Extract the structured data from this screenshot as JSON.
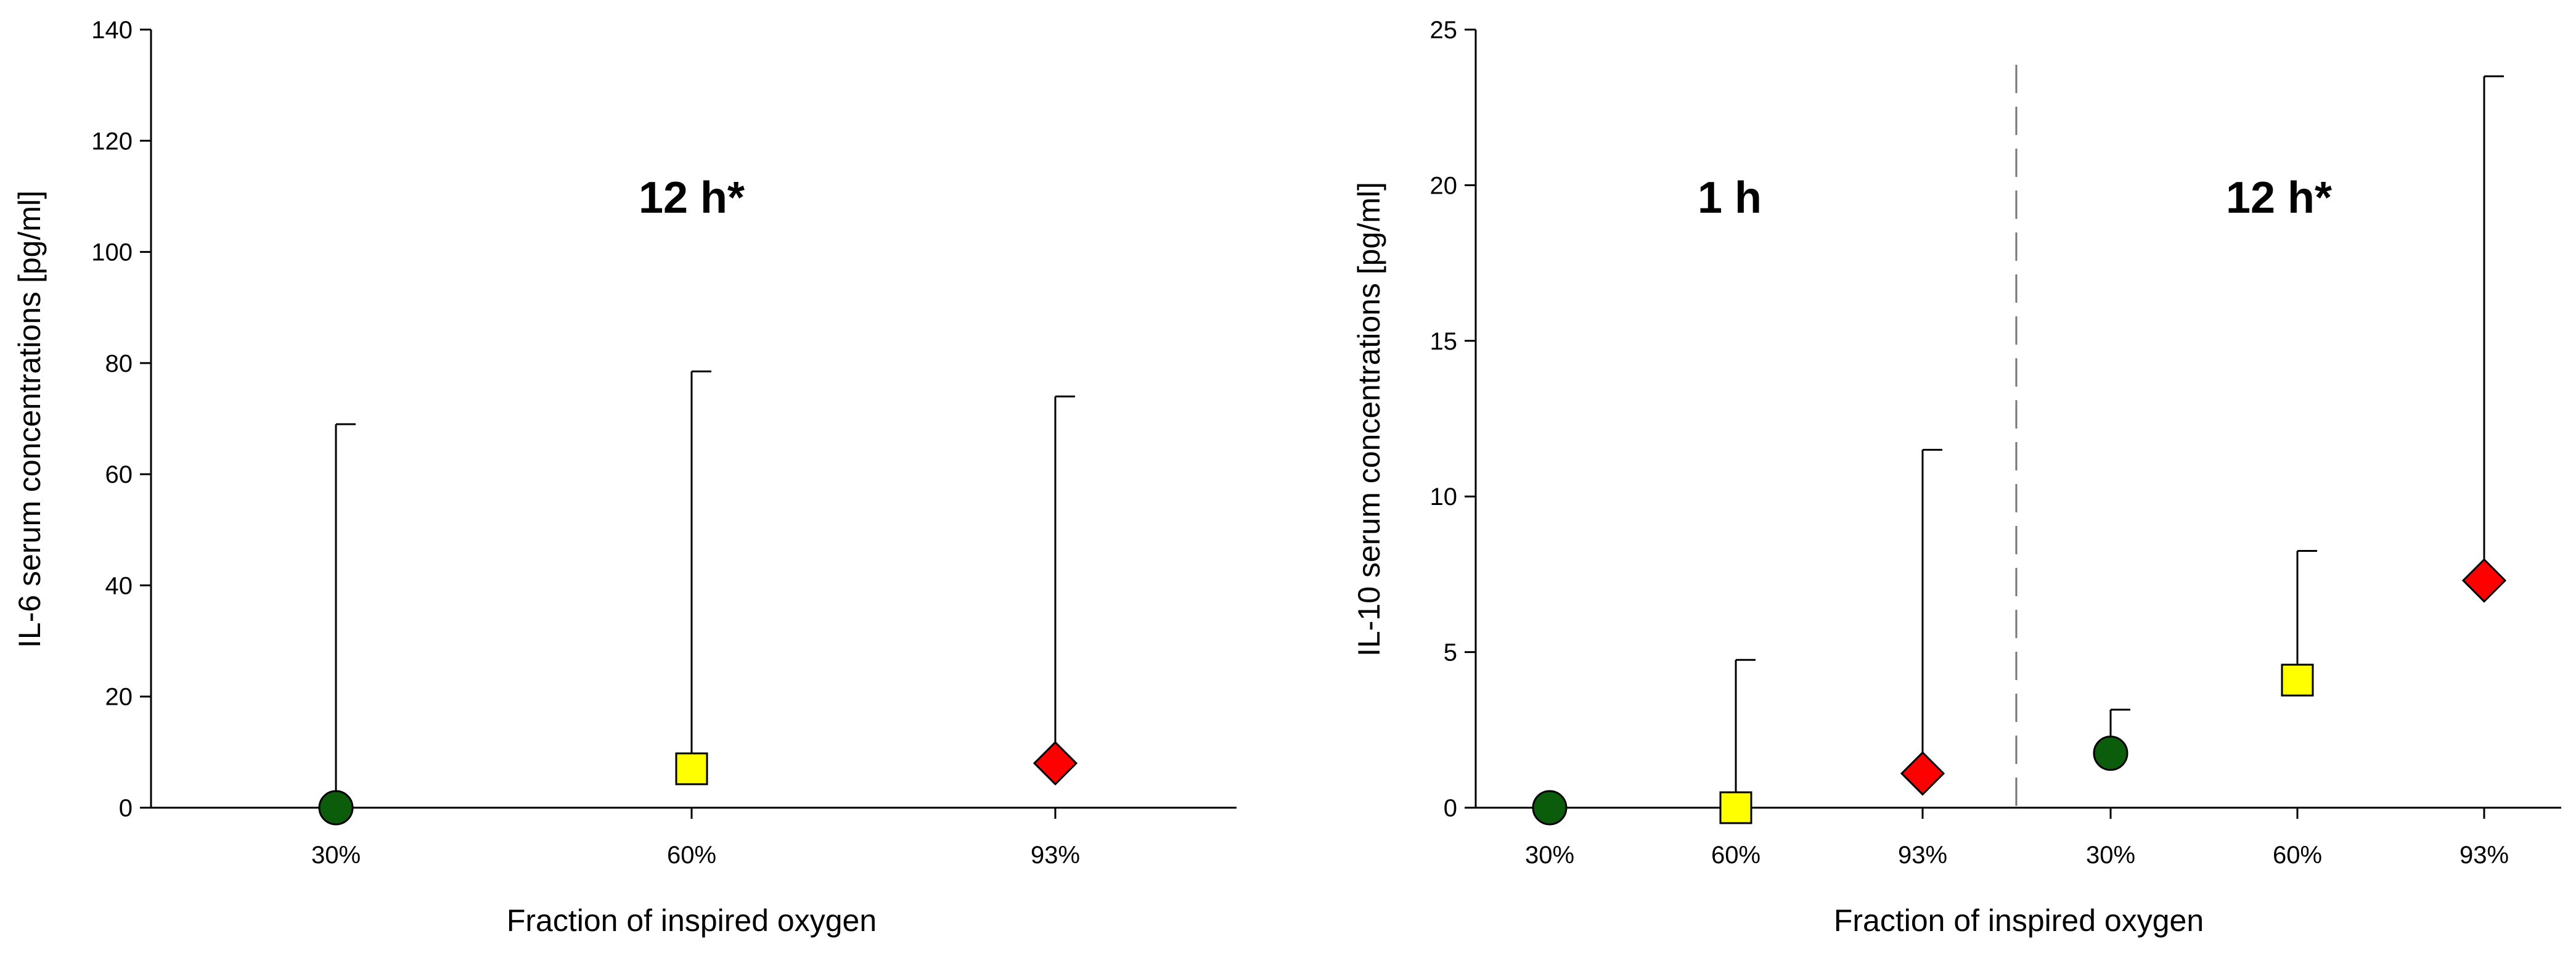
{
  "chart_data": [
    {
      "type": "scatter",
      "ylabel": "IL-6 serum concentrations [pg/ml]",
      "xlabel": "Fraction of inspired oxygen",
      "ylim": [
        0,
        140
      ],
      "yticks": [
        "0",
        "20",
        "40",
        "60",
        "80",
        "100",
        "120",
        "140"
      ],
      "groups": [
        {
          "label": "12 h*",
          "points": [
            {
              "x": "30%",
              "y": 0,
              "err_upper": 69,
              "marker": "circle",
              "color": "#0b5d0b"
            },
            {
              "x": "60%",
              "y": 7,
              "err_upper": 78.5,
              "marker": "square",
              "color": "#ffff00"
            },
            {
              "x": "93%",
              "y": 8,
              "err_upper": 74,
              "marker": "diamond",
              "color": "#ff0000"
            }
          ]
        }
      ]
    },
    {
      "type": "scatter",
      "ylabel": "IL-10 serum concentrations [pg/ml]",
      "xlabel": "Fraction of inspired oxygen",
      "ylim": [
        0,
        25
      ],
      "yticks": [
        "0",
        "5",
        "10",
        "15",
        "20",
        "25"
      ],
      "groups": [
        {
          "label": "1 h",
          "points": [
            {
              "x": "30%",
              "y": 0,
              "err_upper": null,
              "marker": "circle",
              "color": "#0b5d0b"
            },
            {
              "x": "60%",
              "y": 0,
              "err_upper": 4.75,
              "marker": "square",
              "color": "#ffff00"
            },
            {
              "x": "93%",
              "y": 1.1,
              "err_upper": 11.5,
              "marker": "diamond",
              "color": "#ff0000"
            }
          ]
        },
        {
          "label": "12 h*",
          "points": [
            {
              "x": "30%",
              "y": 1.75,
              "err_upper": 3.15,
              "marker": "circle",
              "color": "#0b5d0b"
            },
            {
              "x": "60%",
              "y": 4.1,
              "err_upper": 8.25,
              "marker": "square",
              "color": "#ffff00"
            },
            {
              "x": "93%",
              "y": 7.3,
              "err_upper": 23.5,
              "marker": "diamond",
              "color": "#ff0000"
            }
          ]
        }
      ]
    }
  ]
}
